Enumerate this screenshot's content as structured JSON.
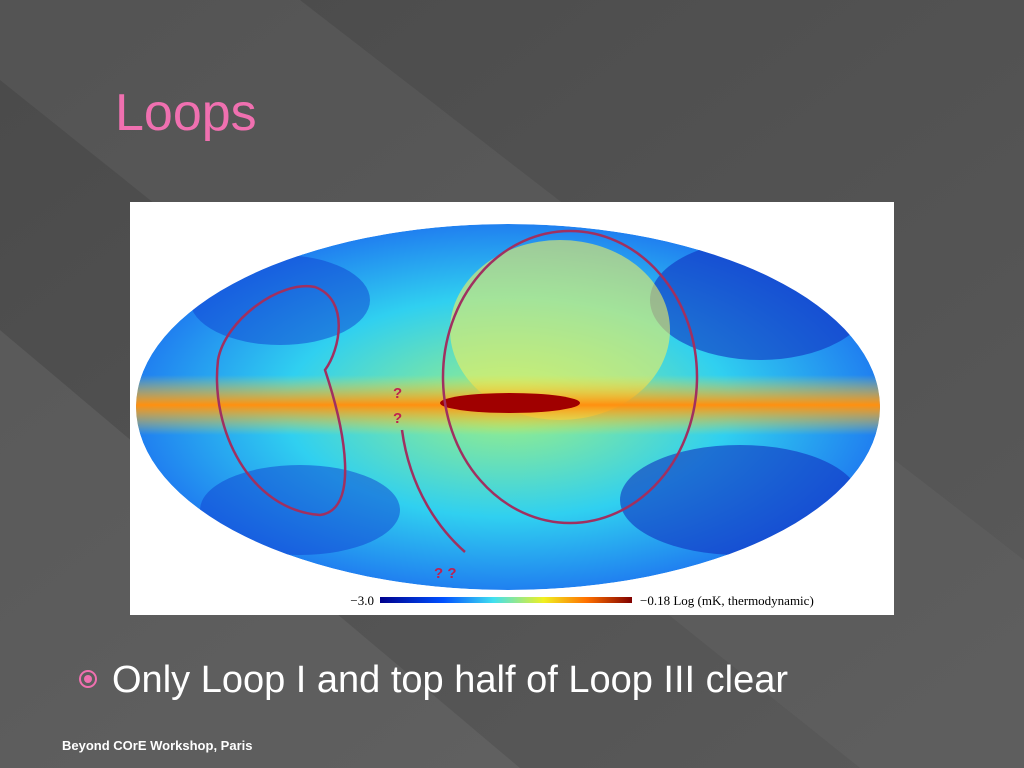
{
  "slide": {
    "title": "Loops",
    "figure": {
      "colorbar_min": "−3.0",
      "colorbar_max": "−0.18 Log (mK, thermodynamic)",
      "annotations": [
        "?",
        "?",
        "? ?"
      ]
    },
    "bullets": [
      "Only Loop I and top half of Loop III clear"
    ],
    "footer": "Beyond COrE Workshop, Paris"
  }
}
